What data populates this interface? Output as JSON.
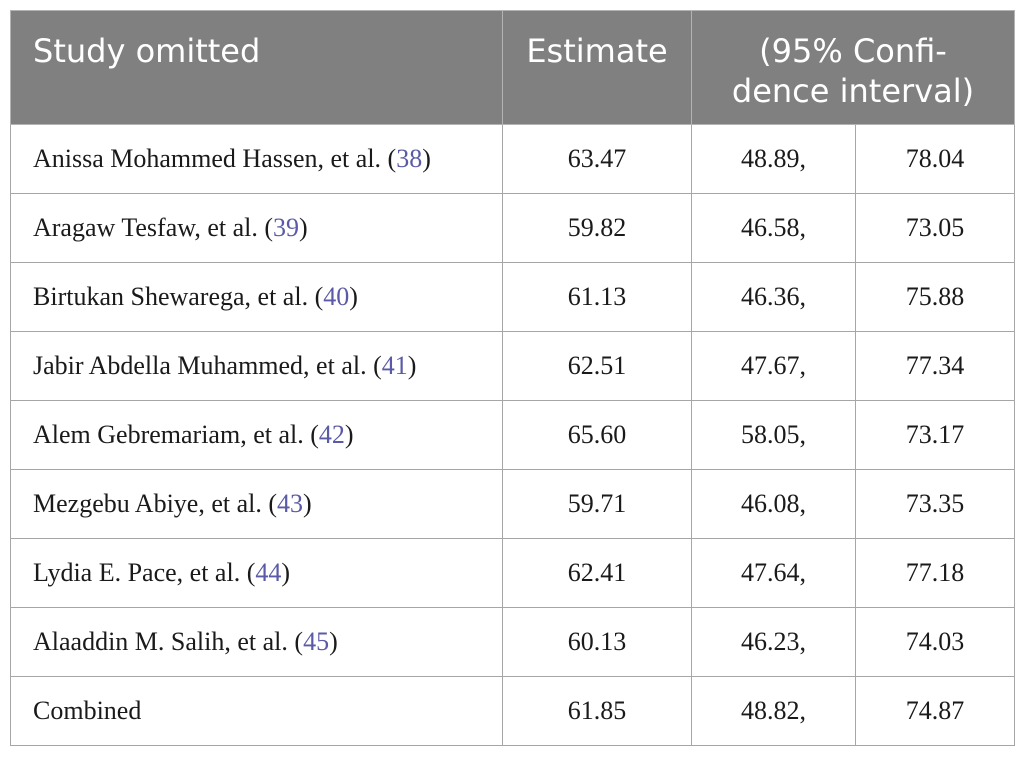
{
  "table": {
    "headers": {
      "study": "Study omitted",
      "estimate": "Estimate",
      "ci_line1": "(95% Confi-",
      "ci_line2": "dence interval)"
    },
    "rows": [
      {
        "name": "Anissa Mohammed Hassen, et al. (",
        "ref": "38",
        "close": ")",
        "estimate": "63.47",
        "lower": "48.89,",
        "upper": "78.04"
      },
      {
        "name": "Aragaw Tesfaw, et al. (",
        "ref": "39",
        "close": ")",
        "estimate": "59.82",
        "lower": "46.58,",
        "upper": "73.05"
      },
      {
        "name": "Birtukan Shewarega, et al. (",
        "ref": "40",
        "close": ")",
        "estimate": "61.13",
        "lower": "46.36,",
        "upper": "75.88"
      },
      {
        "name": "Jabir Abdella Muhammed, et al. (",
        "ref": "41",
        "close": ")",
        "estimate": "62.51",
        "lower": "47.67,",
        "upper": "77.34"
      },
      {
        "name": "Alem Gebremariam, et al. (",
        "ref": "42",
        "close": ")",
        "estimate": "65.60",
        "lower": "58.05,",
        "upper": "73.17"
      },
      {
        "name": "Mezgebu Abiye, et al. (",
        "ref": "43",
        "close": ")",
        "estimate": "59.71",
        "lower": "46.08,",
        "upper": "73.35"
      },
      {
        "name": "Lydia E. Pace, et al. (",
        "ref": "44",
        "close": ")",
        "estimate": "62.41",
        "lower": "47.64,",
        "upper": "77.18"
      },
      {
        "name": "Alaaddin M. Salih, et al. (",
        "ref": "45",
        "close": ")",
        "estimate": "60.13",
        "lower": "46.23,",
        "upper": "74.03"
      },
      {
        "name": "Combined",
        "ref": "",
        "close": "",
        "estimate": "61.85",
        "lower": "48.82,",
        "upper": "74.87"
      }
    ]
  },
  "colors": {
    "header_bg": "#808080",
    "header_text": "#ffffff",
    "reference_link": "#5a5aa6",
    "border": "#a6a6a6"
  }
}
